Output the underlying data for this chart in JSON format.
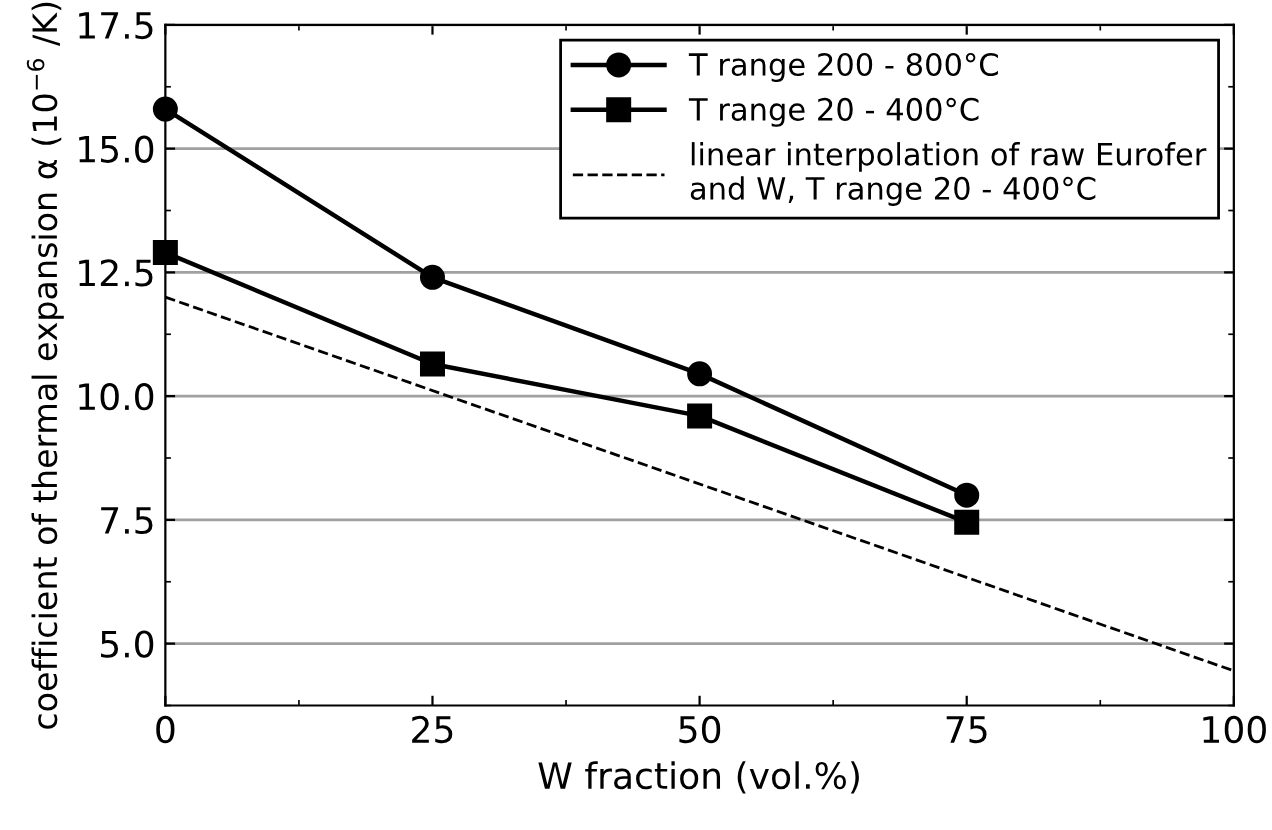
{
  "chart_data": {
    "type": "line",
    "xlabel": "W fraction (vol.%)",
    "ylabel": "coefficient of thermal expansion α (10$^{−6}$ /K)",
    "xlim": [
      0,
      100
    ],
    "xticks": [
      0,
      25,
      50,
      75,
      100
    ],
    "ylim": [
      3.75,
      17.5
    ],
    "yticks": [
      {
        "value": 5,
        "label": "5.0"
      },
      7.5,
      {
        "value": 10,
        "label": "10.0"
      },
      12.5,
      {
        "value": 15,
        "label": "15.0"
      },
      17.5
    ],
    "grid": "y",
    "legend": "top right",
    "series": [
      {
        "name": "T range 200 - 800°C",
        "color": "#000000",
        "marker": "circle",
        "line_style": "solid",
        "x": [
          0,
          25,
          50,
          75
        ],
        "values": [
          15.8,
          12.4,
          10.45,
          8.0
        ]
      },
      {
        "name": "T range 20 - 400°C",
        "color": "#000000",
        "marker": "square",
        "line_style": "solid",
        "x": [
          0,
          25,
          50,
          75
        ],
        "values": [
          12.9,
          10.65,
          9.6,
          7.45
        ]
      },
      {
        "name": "linear interpolation of raw Eurofer\nand W, T range 20 - 400°C",
        "color": "#000000",
        "marker": "none",
        "line_style": "dashed",
        "x": [
          0,
          100
        ],
        "values": [
          12.0,
          4.45
        ]
      }
    ]
  }
}
